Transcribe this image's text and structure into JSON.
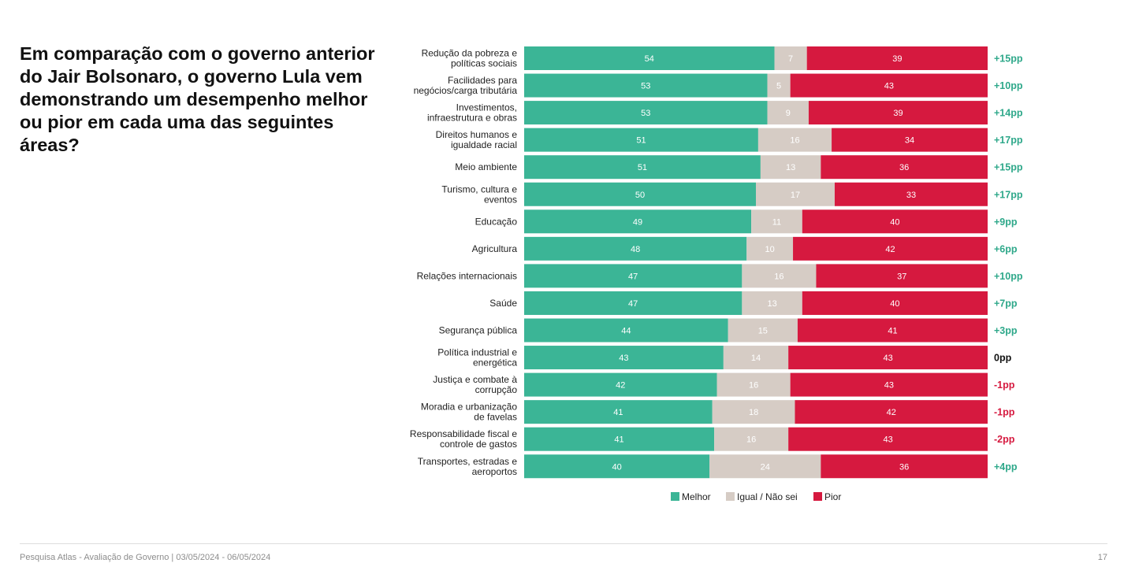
{
  "title": "Em comparação com o governo anterior do Jair Bolsonaro, o governo Lula vem demonstrando um desempenho melhor ou pior em cada uma das seguintes áreas?",
  "footer": {
    "source": "Pesquisa Atlas - Avaliação de Governo | 03/05/2024 - 06/05/2024",
    "page_number": "17"
  },
  "colors": {
    "melhor": "#3bb596",
    "igual": "#d6ccc5",
    "pior": "#d6193f",
    "diff_positive": "#2ea88a",
    "diff_negative": "#d6193f",
    "diff_zero": "#111111"
  },
  "chart_data": {
    "type": "bar",
    "orientation": "horizontal",
    "stacked": true,
    "xlim": [
      0,
      100
    ],
    "legend_position": "bottom",
    "categories": [
      [
        "Redução da pobreza e",
        "políticas sociais"
      ],
      [
        "Facilidades para",
        "negócios/carga tributária"
      ],
      [
        "Investimentos,",
        "infraestrutura e obras"
      ],
      [
        "Direitos humanos e",
        "igualdade racial"
      ],
      [
        "Meio ambiente"
      ],
      [
        "Turismo, cultura e",
        "eventos"
      ],
      [
        "Educação"
      ],
      [
        "Agricultura"
      ],
      [
        "Relações internacionais"
      ],
      [
        "Saúde"
      ],
      [
        "Segurança pública"
      ],
      [
        "Política industrial e",
        "energética"
      ],
      [
        "Justiça e combate à",
        "corrupção"
      ],
      [
        "Moradia e urbanização",
        "de favelas"
      ],
      [
        "Responsabilidade fiscal e",
        "controle de gastos"
      ],
      [
        "Transportes, estradas e",
        "aeroportos"
      ]
    ],
    "series": [
      {
        "name": "Melhor",
        "color": "#3bb596",
        "values": [
          54,
          53,
          53,
          51,
          51,
          50,
          49,
          48,
          47,
          47,
          44,
          43,
          42,
          41,
          41,
          40
        ]
      },
      {
        "name": "Igual / Não sei",
        "color": "#d6ccc5",
        "values": [
          7,
          5,
          9,
          16,
          13,
          17,
          11,
          10,
          16,
          13,
          15,
          14,
          16,
          18,
          16,
          24
        ]
      },
      {
        "name": "Pior",
        "color": "#d6193f",
        "values": [
          39,
          43,
          39,
          34,
          36,
          33,
          40,
          42,
          37,
          40,
          41,
          43,
          43,
          42,
          43,
          36
        ]
      }
    ],
    "differences": [
      "+15pp",
      "+10pp",
      "+14pp",
      "+17pp",
      "+15pp",
      "+17pp",
      "+9pp",
      "+6pp",
      "+10pp",
      "+7pp",
      "+3pp",
      "0pp",
      "-1pp",
      "-1pp",
      "-2pp",
      "+4pp"
    ]
  }
}
